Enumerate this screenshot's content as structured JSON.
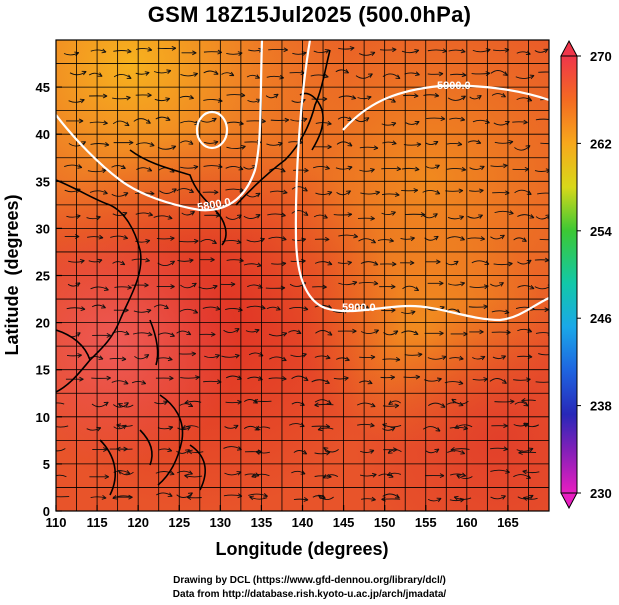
{
  "title": "GSM 18Z15Jul2025 (500.0hPa)",
  "axes": {
    "xlabel": "Longitude (degrees)",
    "ylabel": "Latitude  (degrees)",
    "xticks": [
      "110",
      "115",
      "120",
      "125",
      "130",
      "135",
      "140",
      "145",
      "150",
      "155",
      "160",
      "165"
    ],
    "yticks": [
      "0",
      "5",
      "10",
      "15",
      "20",
      "25",
      "30",
      "35",
      "40",
      "45"
    ],
    "xlim": [
      110,
      170
    ],
    "ylim": [
      0,
      50
    ]
  },
  "colorbar": {
    "labels": [
      "270",
      "262",
      "254",
      "246",
      "238",
      "230"
    ],
    "range": [
      230,
      270
    ]
  },
  "contours": [
    {
      "label": "5800.0"
    },
    {
      "label": "5900.0"
    },
    {
      "label": "5900.0"
    }
  ],
  "credits": {
    "line1": "Drawing by DCL (https://www.gfd-dennou.org/library/dcl/)",
    "line2": "Data from http://database.rish.kyoto-u.ac.jp/arch/jmadata/"
  }
}
